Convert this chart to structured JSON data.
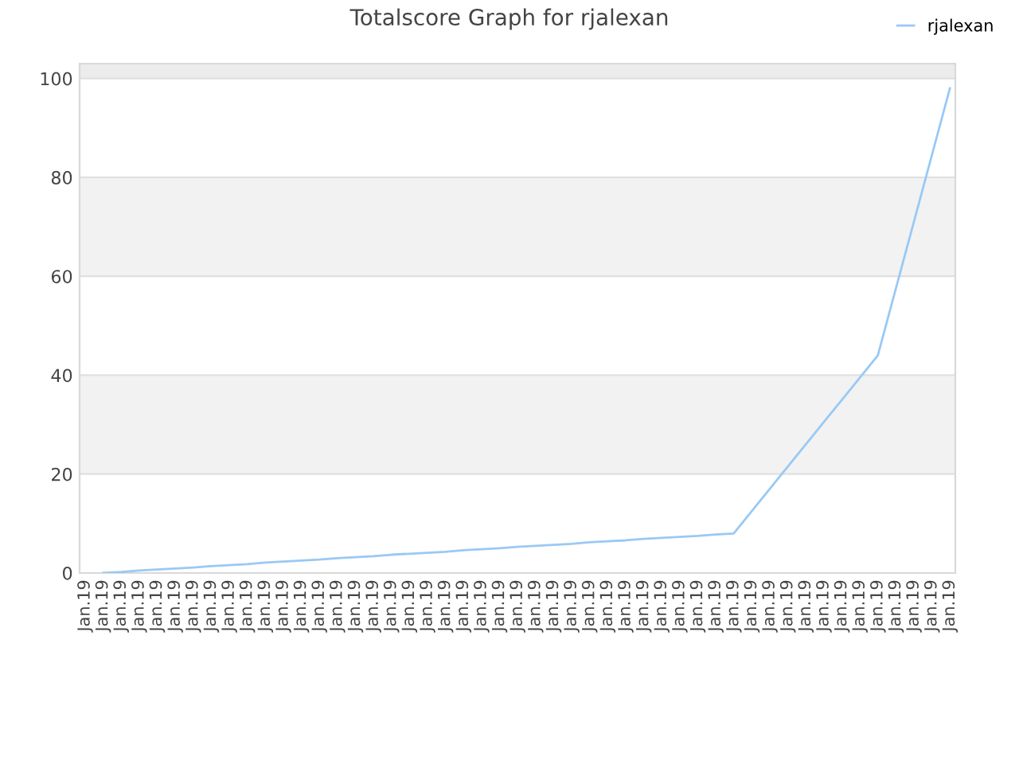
{
  "chart_data": {
    "type": "line",
    "title": "Totalscore Graph for rjalexan",
    "categories": [
      "Jan.19",
      "Jan.19",
      "Jan.19",
      "Jan.19",
      "Jan.19",
      "Jan.19",
      "Jan.19",
      "Jan.19",
      "Jan.19",
      "Jan.19",
      "Jan.19",
      "Jan.19",
      "Jan.19",
      "Jan.19",
      "Jan.19",
      "Jan.19",
      "Jan.19",
      "Jan.19",
      "Jan.19",
      "Jan.19",
      "Jan.19",
      "Jan.19",
      "Jan.19",
      "Jan.19",
      "Jan.19",
      "Jan.19",
      "Jan.19",
      "Jan.19",
      "Jan.19",
      "Jan.19",
      "Jan.19",
      "Jan.19",
      "Jan.19",
      "Jan.19",
      "Jan.19",
      "Jan.19",
      "Jan.19",
      "Jan.19",
      "Jan.19",
      "Jan.19",
      "Jan.19",
      "Jan.19",
      "Jan.19",
      "Jan.19",
      "Jan.19",
      "Jan.19",
      "Jan.19",
      "Jan.19",
      "Jan.19"
    ],
    "series": [
      {
        "name": "rjalexan",
        "color": "#99c9f5",
        "values": [
          null,
          0,
          0.2,
          0.5,
          0.7,
          0.9,
          1.1,
          1.4,
          1.6,
          1.8,
          2.1,
          2.3,
          2.5,
          2.7,
          3.0,
          3.2,
          3.4,
          3.7,
          3.9,
          4.1,
          4.3,
          4.6,
          4.8,
          5.0,
          5.3,
          5.5,
          5.7,
          5.9,
          6.2,
          6.4,
          6.6,
          6.9,
          7.1,
          7.3,
          7.5,
          7.8,
          8.0,
          12.5,
          17,
          21.5,
          26,
          30.5,
          35,
          39.5,
          44,
          57.5,
          71,
          84.5,
          98
        ]
      }
    ],
    "ylim": [
      0,
      103
    ],
    "yticks": [
      0,
      20,
      40,
      60,
      80,
      100
    ],
    "bands": [
      {
        "axis": "y",
        "from": 20,
        "to": 40,
        "color": "#f2f2f2"
      },
      {
        "axis": "y",
        "from": 60,
        "to": 80,
        "color": "#f2f2f2"
      },
      {
        "axis": "y",
        "from": 100,
        "to": 103,
        "color": "#ececec"
      }
    ],
    "grid": "y",
    "legend": "top right",
    "marker": "none",
    "line_style": "solid"
  }
}
